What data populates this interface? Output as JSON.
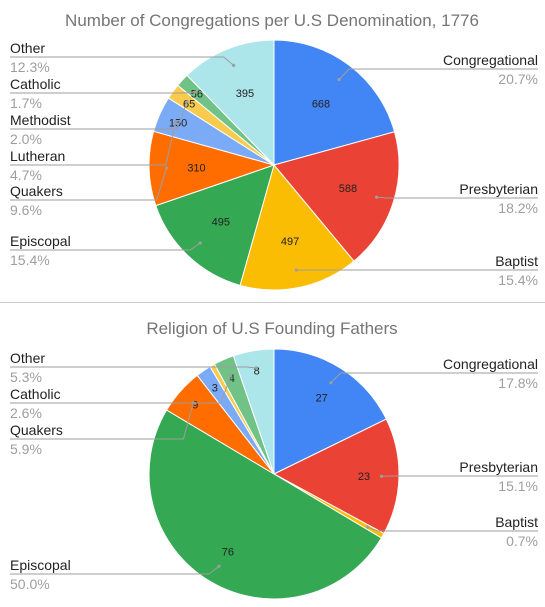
{
  "colors": {
    "Congregational": "#4285f4",
    "Presbyterian": "#ea4335",
    "Baptist": "#fbbc04",
    "Episcopal": "#34a853",
    "Quakers": "#ff6d01",
    "Lutheran": "#7baaf7",
    "Methodist": "#f7cb4d",
    "Catholic": "#71c287",
    "Other": "#ace5ea"
  },
  "chart_data": [
    {
      "type": "pie",
      "title": "Number of Congregations per U.S Denomination, 1776",
      "legend": "labels-on-sides",
      "slices": [
        {
          "label": "Congregational",
          "value": 668,
          "percent": "20.7%"
        },
        {
          "label": "Presbyterian",
          "value": 588,
          "percent": "18.2%"
        },
        {
          "label": "Baptist",
          "value": 497,
          "percent": "15.4%"
        },
        {
          "label": "Episcopal",
          "value": 495,
          "percent": "15.4%"
        },
        {
          "label": "Quakers",
          "value": 310,
          "percent": "9.6%"
        },
        {
          "label": "Lutheran",
          "value": 150,
          "percent": "4.7%"
        },
        {
          "label": "Methodist",
          "value": 65,
          "percent": "2.0%"
        },
        {
          "label": "Catholic",
          "value": 56,
          "percent": "1.7%"
        },
        {
          "label": "Other",
          "value": 395,
          "percent": "12.3%"
        }
      ]
    },
    {
      "type": "pie",
      "title": "Religion of U.S Founding Fathers",
      "legend": "labels-on-sides",
      "slices": [
        {
          "label": "Congregational",
          "value": 27,
          "percent": "17.8%"
        },
        {
          "label": "Presbyterian",
          "value": 23,
          "percent": "15.1%"
        },
        {
          "label": "Baptist",
          "value": 1,
          "percent": "0.7%"
        },
        {
          "label": "Episcopal",
          "value": 76,
          "percent": "50.0%"
        },
        {
          "label": "Quakers",
          "value": 9,
          "percent": "5.9%"
        },
        {
          "label": "Lutheran",
          "value": 3,
          "percent": ""
        },
        {
          "label": "Methodist",
          "value": 1,
          "percent": ""
        },
        {
          "label": "Catholic",
          "value": 4,
          "percent": "2.6%"
        },
        {
          "label": "Other",
          "value": 8,
          "percent": "5.3%"
        }
      ]
    }
  ]
}
